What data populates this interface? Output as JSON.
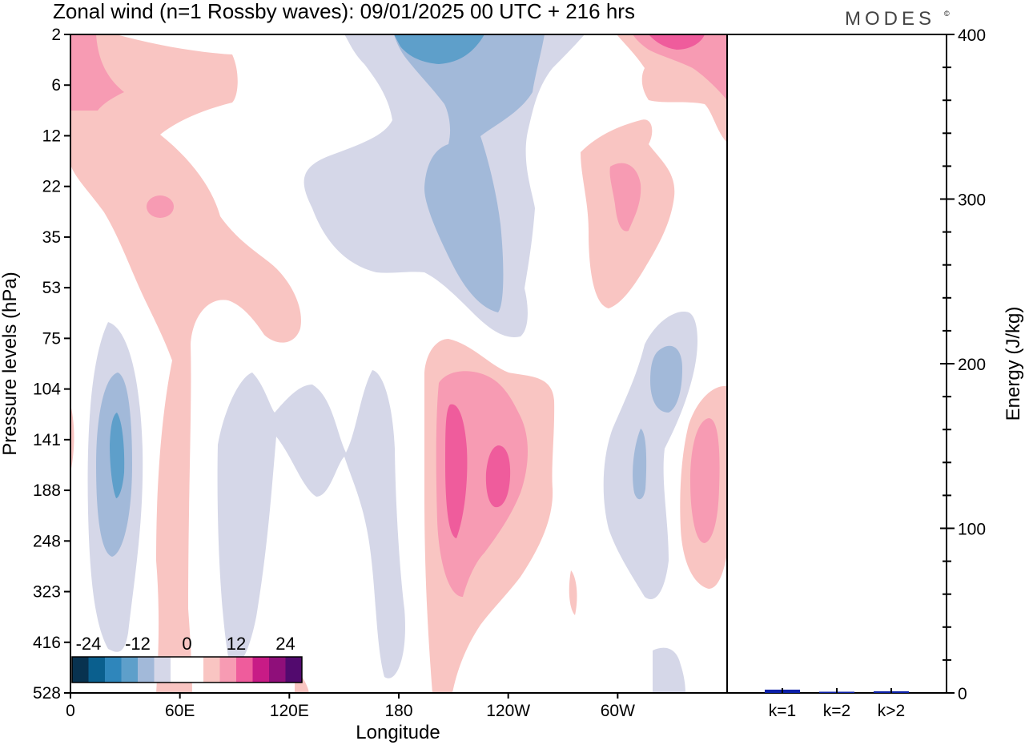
{
  "chart_data": [
    {
      "type": "heatmap",
      "title": "Zonal wind (n=1 Rossby waves):  09/01/2025  00 UTC  + 216 hrs",
      "xlabel": "Longitude",
      "ylabel": "Pressure levels (hPa)",
      "x_tick_labels": [
        "0",
        "60E",
        "120E",
        "180",
        "120W",
        "60W"
      ],
      "y_tick_labels": [
        "2",
        "6",
        "12",
        "22",
        "35",
        "53",
        "75",
        "104",
        "141",
        "188",
        "248",
        "323",
        "416",
        "528"
      ],
      "colorbar": {
        "tick_labels": [
          "-24",
          "-12",
          "0",
          "12",
          "24"
        ],
        "colors": [
          "#08324f",
          "#0a5f8e",
          "#2f86bb",
          "#5e9fca",
          "#a2b9d9",
          "#d5d7e8",
          "#ffffff",
          "#ffffff",
          "#f9c5c2",
          "#f79bb3",
          "#ef5c9c",
          "#c81b86",
          "#8f0f7a",
          "#520a6e"
        ]
      },
      "features": [
        {
          "sign": "positive",
          "level": 12,
          "lon": "15E",
          "p_top": 6,
          "p_bottom": 12
        },
        {
          "sign": "positive",
          "level": 12,
          "lon": "50E",
          "p_top": 22,
          "p_bottom": 35
        },
        {
          "sign": "negative",
          "level": -12,
          "lon": "170W",
          "p_top": 2,
          "p_bottom": 6
        },
        {
          "sign": "negative",
          "level": -6,
          "lon": "175W",
          "p_top": 12,
          "p_bottom": 53
        },
        {
          "sign": "positive",
          "level": 12,
          "lon": "45W",
          "p_top": 22,
          "p_bottom": 35
        },
        {
          "sign": "positive",
          "level": 12,
          "lon": "30W",
          "p_top": 2,
          "p_bottom": 6
        },
        {
          "sign": "negative",
          "level": -12,
          "lon": "25E",
          "p_top": 141,
          "p_bottom": 188
        },
        {
          "sign": "positive",
          "level": 18,
          "lon": "130W",
          "p_top": 104,
          "p_bottom": 248
        },
        {
          "sign": "positive",
          "level": 18,
          "lon": "115W",
          "p_top": 141,
          "p_bottom": 188
        },
        {
          "sign": "negative",
          "level": -6,
          "lon": "25W",
          "p_top": 104,
          "p_bottom": 141
        },
        {
          "sign": "positive",
          "level": 12,
          "lon": "5W",
          "p_top": 141,
          "p_bottom": 248
        }
      ]
    },
    {
      "type": "bar",
      "ylabel": "Energy (J/kg)",
      "categories": [
        "k=1",
        "k=2",
        "k>2"
      ],
      "values": [
        2,
        0.5,
        1
      ],
      "ylim": [
        0,
        400
      ],
      "yticks": [
        0,
        100,
        200,
        300,
        400
      ],
      "bar_color": "#0a1fa8"
    }
  ],
  "brand": "MODES",
  "brand_mark": "©"
}
